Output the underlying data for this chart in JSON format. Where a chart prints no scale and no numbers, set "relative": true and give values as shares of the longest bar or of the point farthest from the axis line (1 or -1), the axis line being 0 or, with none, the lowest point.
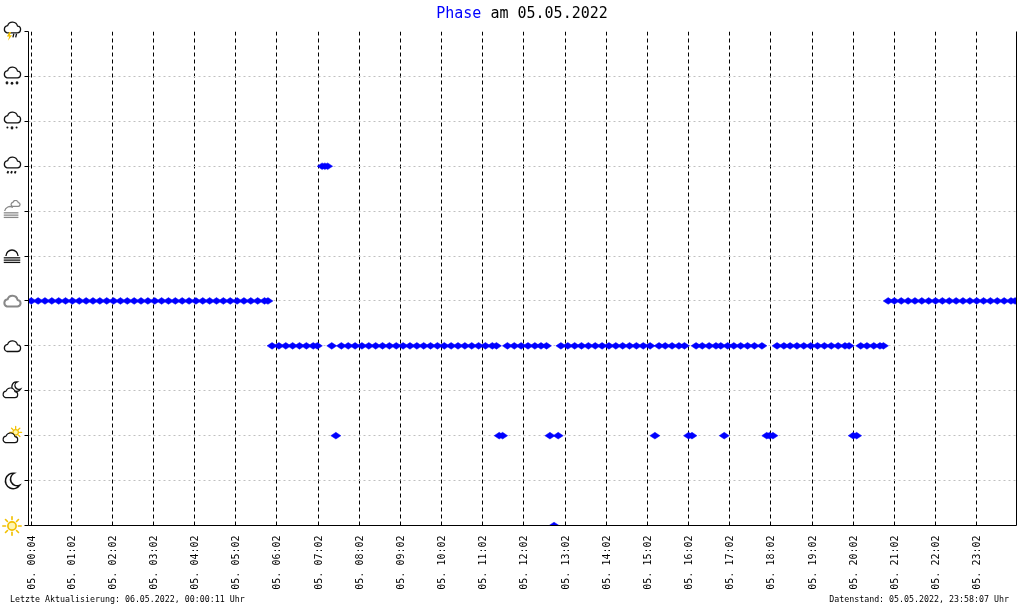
{
  "chart_data": {
    "type": "scatter",
    "title": "am 05.05.2022",
    "annotations": [
      "Letzte Aktualisierung: 06.05.2022, 00:00:11 Uhr",
      "Datenstand: 05.05.2022, 23:58:07 Uhr"
    ],
    "relative": true,
    "marker": "diamond",
    "grid": true,
    "xlim": [
      "2022-05-05T00:00",
      "2022-05-06T00:00"
    ],
    "xticks": [
      {
        "value": "2022-05-05T00:04",
        "label": "05. 00:04"
      },
      {
        "value": "2022-05-05T01:02",
        "label": "05. 01:02"
      },
      {
        "value": "2022-05-05T02:02",
        "label": "05. 02:02"
      },
      {
        "value": "2022-05-05T03:02",
        "label": "05. 03:02"
      },
      {
        "value": "2022-05-05T04:02",
        "label": "05. 04:02"
      },
      {
        "value": "2022-05-05T05:02",
        "label": "05. 05:02"
      },
      {
        "value": "2022-05-05T06:02",
        "label": "05. 06:02"
      },
      {
        "value": "2022-05-05T07:02",
        "label": "05. 07:02"
      },
      {
        "value": "2022-05-05T08:02",
        "label": "05. 08:02"
      },
      {
        "value": "2022-05-05T09:02",
        "label": "05. 09:02"
      },
      {
        "value": "2022-05-05T10:02",
        "label": "05. 10:02"
      },
      {
        "value": "2022-05-05T11:02",
        "label": "05. 11:02"
      },
      {
        "value": "2022-05-05T12:02",
        "label": "05. 12:02"
      },
      {
        "value": "2022-05-05T13:02",
        "label": "05. 13:02"
      },
      {
        "value": "2022-05-05T14:02",
        "label": "05. 14:02"
      },
      {
        "value": "2022-05-05T15:02",
        "label": "05. 15:02"
      },
      {
        "value": "2022-05-05T16:02",
        "label": "05. 16:02"
      },
      {
        "value": "2022-05-05T17:02",
        "label": "05. 17:02"
      },
      {
        "value": "2022-05-05T18:02",
        "label": "05. 18:02"
      },
      {
        "value": "2022-05-05T19:02",
        "label": "05. 19:02"
      },
      {
        "value": "2022-05-05T20:02",
        "label": "05. 20:02"
      },
      {
        "value": "2022-05-05T21:02",
        "label": "05. 21:02"
      },
      {
        "value": "2022-05-05T22:02",
        "label": "05. 22:02"
      },
      {
        "value": "2022-05-05T23:02",
        "label": "05. 23:02"
      }
    ],
    "series": [
      {
        "name": "Phase",
        "color": "#0000ff",
        "x": [
          "2022-05-05T00:04",
          "2022-05-05T00:14",
          "2022-05-05T00:24",
          "2022-05-05T00:34",
          "2022-05-05T00:44",
          "2022-05-05T00:54",
          "2022-05-05T01:04",
          "2022-05-05T01:14",
          "2022-05-05T01:24",
          "2022-05-05T01:34",
          "2022-05-05T01:44",
          "2022-05-05T01:54",
          "2022-05-05T02:04",
          "2022-05-05T02:14",
          "2022-05-05T02:24",
          "2022-05-05T02:34",
          "2022-05-05T02:44",
          "2022-05-05T02:54",
          "2022-05-05T03:04",
          "2022-05-05T03:14",
          "2022-05-05T03:24",
          "2022-05-05T03:34",
          "2022-05-05T03:44",
          "2022-05-05T03:54",
          "2022-05-05T04:04",
          "2022-05-05T04:14",
          "2022-05-05T04:24",
          "2022-05-05T04:34",
          "2022-05-05T04:44",
          "2022-05-05T04:54",
          "2022-05-05T05:04",
          "2022-05-05T05:14",
          "2022-05-05T05:24",
          "2022-05-05T05:34",
          "2022-05-05T05:44",
          "2022-05-05T05:49",
          "2022-05-05T05:55",
          "2022-05-05T06:05",
          "2022-05-05T06:15",
          "2022-05-05T06:25",
          "2022-05-05T06:35",
          "2022-05-05T06:45",
          "2022-05-05T06:55",
          "2022-05-05T07:01",
          "2022-05-05T07:08",
          "2022-05-05T07:12",
          "2022-05-05T07:16",
          "2022-05-05T07:22",
          "2022-05-05T07:28",
          "2022-05-05T07:36",
          "2022-05-05T07:46",
          "2022-05-05T07:56",
          "2022-05-05T08:06",
          "2022-05-05T08:16",
          "2022-05-05T08:26",
          "2022-05-05T08:36",
          "2022-05-05T08:46",
          "2022-05-05T08:56",
          "2022-05-05T09:06",
          "2022-05-05T09:16",
          "2022-05-05T09:26",
          "2022-05-05T09:36",
          "2022-05-05T09:46",
          "2022-05-05T09:56",
          "2022-05-05T10:06",
          "2022-05-05T10:16",
          "2022-05-05T10:26",
          "2022-05-05T10:36",
          "2022-05-05T10:46",
          "2022-05-05T10:56",
          "2022-05-05T11:06",
          "2022-05-05T11:16",
          "2022-05-05T11:22",
          "2022-05-05T11:26",
          "2022-05-05T11:31",
          "2022-05-05T11:38",
          "2022-05-05T11:48",
          "2022-05-05T11:58",
          "2022-05-05T12:08",
          "2022-05-05T12:18",
          "2022-05-05T12:27",
          "2022-05-05T12:35",
          "2022-05-05T12:40",
          "2022-05-05T12:46",
          "2022-05-05T12:52",
          "2022-05-05T12:56",
          "2022-05-05T13:06",
          "2022-05-05T13:16",
          "2022-05-05T13:26",
          "2022-05-05T13:36",
          "2022-05-05T13:46",
          "2022-05-05T13:56",
          "2022-05-05T14:06",
          "2022-05-05T14:16",
          "2022-05-05T14:26",
          "2022-05-05T14:36",
          "2022-05-05T14:46",
          "2022-05-05T14:56",
          "2022-05-05T15:06",
          "2022-05-05T15:13",
          "2022-05-05T15:19",
          "2022-05-05T15:28",
          "2022-05-05T15:38",
          "2022-05-05T15:48",
          "2022-05-05T15:56",
          "2022-05-05T16:02",
          "2022-05-05T16:07",
          "2022-05-05T16:13",
          "2022-05-05T16:22",
          "2022-05-05T16:32",
          "2022-05-05T16:42",
          "2022-05-05T16:49",
          "2022-05-05T16:54",
          "2022-05-05T16:59",
          "2022-05-05T17:08",
          "2022-05-05T17:18",
          "2022-05-05T17:28",
          "2022-05-05T17:38",
          "2022-05-05T17:49",
          "2022-05-05T17:56",
          "2022-05-05T18:00",
          "2022-05-05T18:05",
          "2022-05-05T18:11",
          "2022-05-05T18:21",
          "2022-05-05T18:30",
          "2022-05-05T18:40",
          "2022-05-05T18:50",
          "2022-05-05T19:00",
          "2022-05-05T19:10",
          "2022-05-05T19:20",
          "2022-05-05T19:30",
          "2022-05-05T19:40",
          "2022-05-05T19:50",
          "2022-05-05T19:56",
          "2022-05-05T20:02",
          "2022-05-05T20:07",
          "2022-05-05T20:13",
          "2022-05-05T20:22",
          "2022-05-05T20:32",
          "2022-05-05T20:41",
          "2022-05-05T20:46",
          "2022-05-05T20:53",
          "2022-05-05T21:02",
          "2022-05-05T21:12",
          "2022-05-05T21:22",
          "2022-05-05T21:32",
          "2022-05-05T21:42",
          "2022-05-05T21:52",
          "2022-05-05T22:02",
          "2022-05-05T22:12",
          "2022-05-05T22:22",
          "2022-05-05T22:32",
          "2022-05-05T22:42",
          "2022-05-05T22:52",
          "2022-05-05T23:02",
          "2022-05-05T23:12",
          "2022-05-05T23:22",
          "2022-05-05T23:32",
          "2022-05-05T23:42",
          "2022-05-05T23:52",
          "2022-05-05T23:58"
        ],
        "values": [
          0.625,
          0.625,
          0.625,
          0.625,
          0.625,
          0.625,
          0.625,
          0.625,
          0.625,
          0.625,
          0.625,
          0.625,
          0.625,
          0.625,
          0.625,
          0.625,
          0.625,
          0.625,
          0.625,
          0.625,
          0.625,
          0.625,
          0.625,
          0.625,
          0.625,
          0.625,
          0.625,
          0.625,
          0.625,
          0.625,
          0.625,
          0.625,
          0.625,
          0.625,
          0.625,
          0.625,
          0.5,
          0.5,
          0.5,
          0.5,
          0.5,
          0.5,
          0.5,
          0.5,
          1,
          1,
          1,
          0.5,
          0.25,
          0.5,
          0.5,
          0.5,
          0.5,
          0.5,
          0.5,
          0.5,
          0.5,
          0.5,
          0.5,
          0.5,
          0.5,
          0.5,
          0.5,
          0.5,
          0.5,
          0.5,
          0.5,
          0.5,
          0.5,
          0.5,
          0.5,
          0.5,
          0.5,
          0.25,
          0.25,
          0.5,
          0.5,
          0.5,
          0.5,
          0.5,
          0.5,
          0.5,
          0.25,
          0,
          0.25,
          0.5,
          0.5,
          0.5,
          0.5,
          0.5,
          0.5,
          0.5,
          0.5,
          0.5,
          0.5,
          0.5,
          0.5,
          0.5,
          0.5,
          0.25,
          0.5,
          0.5,
          0.5,
          0.5,
          0.5,
          0.25,
          0.25,
          0.5,
          0.5,
          0.5,
          0.5,
          0.5,
          0.25,
          0.5,
          0.5,
          0.5,
          0.5,
          0.5,
          0.5,
          0.25,
          0.25,
          0.25,
          0.5,
          0.5,
          0.5,
          0.5,
          0.5,
          0.5,
          0.5,
          0.5,
          0.5,
          0.5,
          0.5,
          0.5,
          0.25,
          0.25,
          0.5,
          0.5,
          0.5,
          0.5,
          0.5,
          0.625,
          0.625,
          0.625,
          0.625,
          0.625,
          0.625,
          0.625,
          0.625,
          0.625,
          0.625,
          0.625,
          0.625,
          0.625,
          0.625,
          0.625,
          0.625,
          0.625,
          0.625,
          0.625,
          0.625
        ]
      }
    ]
  }
}
